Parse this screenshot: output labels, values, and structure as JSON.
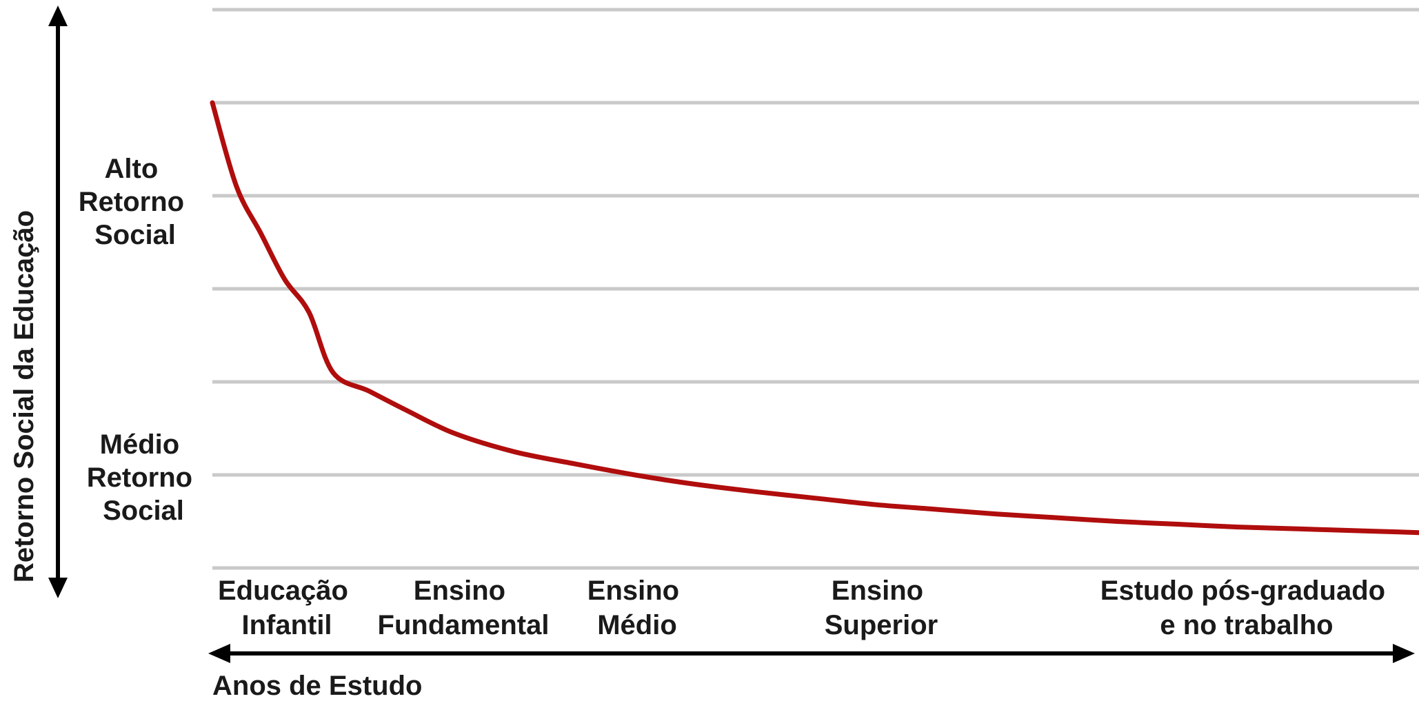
{
  "chart_data": {
    "type": "line",
    "title": "",
    "ylabel": "Retorno Social da Educação",
    "xlabel": "Anos de Estudo",
    "y_levels": [
      {
        "lines": [
          "Alto",
          "Retorno",
          "Social"
        ]
      },
      {
        "lines": [
          "Médio",
          "Retorno",
          "Social"
        ]
      }
    ],
    "categories": [
      {
        "lines": [
          "Educação",
          "Infantil"
        ]
      },
      {
        "lines": [
          "Ensino",
          "Fundamental"
        ]
      },
      {
        "lines": [
          "Ensino",
          "Médio"
        ]
      },
      {
        "lines": [
          "Ensino",
          "Superior"
        ]
      },
      {
        "lines": [
          "Estudo pós-graduado",
          "e no trabalho"
        ]
      }
    ],
    "grid": true,
    "colors": {
      "curve": "#b00d0d",
      "grid": "#c9c9c9",
      "axis": "#000000"
    },
    "x_range": [
      0,
      100
    ],
    "y_range": [
      0,
      6
    ],
    "series": [
      {
        "x": [
          0,
          2,
          4,
          6,
          8,
          10,
          13,
          16,
          20,
          25,
          30,
          35,
          40,
          45,
          50,
          55,
          60,
          65,
          70,
          75,
          80,
          85,
          90,
          95,
          100
        ],
        "values": [
          5.0,
          4.1,
          3.6,
          3.1,
          2.75,
          2.1,
          1.9,
          1.7,
          1.45,
          1.25,
          1.12,
          1.0,
          0.9,
          0.82,
          0.75,
          0.68,
          0.63,
          0.58,
          0.54,
          0.5,
          0.47,
          0.44,
          0.42,
          0.4,
          0.38
        ]
      }
    ]
  }
}
